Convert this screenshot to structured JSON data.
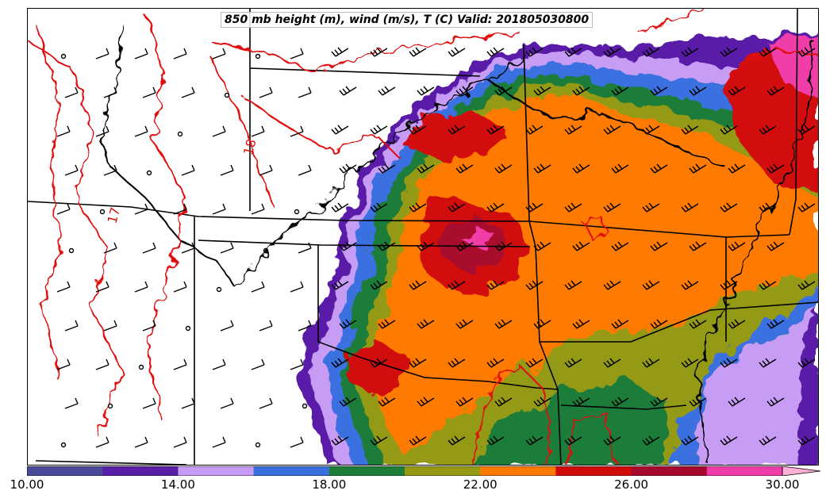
{
  "title": "850 mb height (m), wind (m/s), T (C) Valid: 201805030800",
  "contour_labels": [
    "18",
    "17"
  ],
  "colorbar": {
    "levels": [
      10,
      12,
      14,
      16,
      18,
      20,
      22,
      24,
      26,
      28,
      30
    ],
    "colors": [
      "#4a4a9a",
      "#5a1fa8",
      "#c79cf5",
      "#3a6fe0",
      "#1f7d3a",
      "#959a12",
      "#ff7a00",
      "#d10a0a",
      "#a8082e",
      "#f03ca8",
      "#ffb0d8"
    ],
    "tick_labels": [
      "10.00",
      "14.00",
      "18.00",
      "22.00",
      "26.00",
      "30.00"
    ]
  },
  "colors": {
    "contour": "#e01010",
    "border": "#000000"
  }
}
